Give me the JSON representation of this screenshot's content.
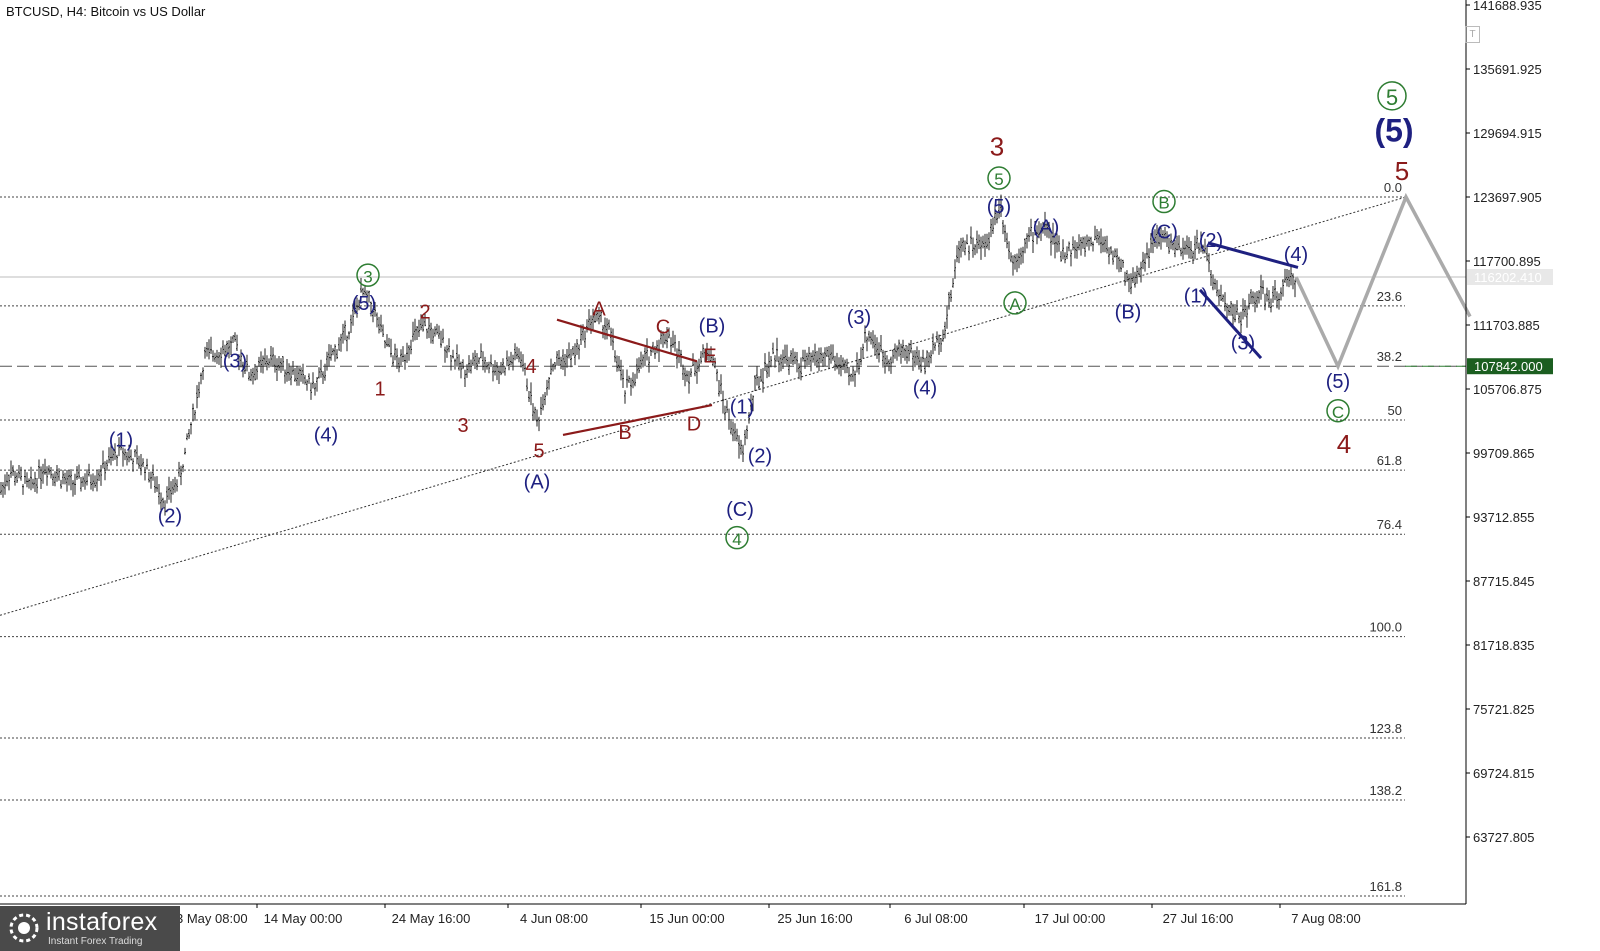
{
  "header": {
    "title": "BTCUSD, H4:  Bitcoin vs US Dollar"
  },
  "logo": {
    "name": "instaforex",
    "tagline": "Instant Forex Trading"
  },
  "toolbar": {
    "t_label": "T"
  },
  "colors": {
    "navy": "#1e2080",
    "maroon": "#8b1a1a",
    "green": "#2e7d32",
    "grey": "#aaaaaa",
    "price_tag": "#1b5e20"
  },
  "chart_data": {
    "type": "line",
    "symbol": "BTCUSD",
    "timeframe": "H4",
    "y_ticks": [
      "141688.935",
      "135691.925",
      "129694.915",
      "123697.905",
      "117700.895",
      "111703.885",
      "105706.875",
      "99709.865",
      "93712.855",
      "87715.845",
      "81718.835",
      "75721.825",
      "69724.815",
      "63727.805"
    ],
    "ylim": [
      58000,
      142500
    ],
    "x_ticks": [
      "14 May 00:00",
      "24 May 16:00",
      "4 Jun 08:00",
      "15 Jun 00:00",
      "25 Jun 16:00",
      "6 Jul 08:00",
      "17 Jul 00:00",
      "27 Jul 16:00",
      "7 Aug 08:00"
    ],
    "x_tick_partial": "3 May 08:00",
    "current_price": "116202.410",
    "level_price": "107842.000",
    "fibonacci": [
      {
        "label": "0.0",
        "price": 123700
      },
      {
        "label": "23.6",
        "price": 113500
      },
      {
        "label": "38.2",
        "price": 107842
      },
      {
        "label": "50",
        "price": 102800
      },
      {
        "label": "61.8",
        "price": 98100
      },
      {
        "label": "76.4",
        "price": 92100
      },
      {
        "label": "100.0",
        "price": 82500
      },
      {
        "label": "123.8",
        "price": 73000
      },
      {
        "label": "138.2",
        "price": 67200
      },
      {
        "label": "161.8",
        "price": 58200
      }
    ],
    "price_path": [
      {
        "t": 0,
        "p": 96000
      },
      {
        "t": 10,
        "p": 98000
      },
      {
        "t": 30,
        "p": 96500
      },
      {
        "t": 45,
        "p": 98500
      },
      {
        "t": 70,
        "p": 96800
      },
      {
        "t": 95,
        "p": 97500
      },
      {
        "t": 120,
        "p": 100000
      },
      {
        "t": 145,
        "p": 98500
      },
      {
        "t": 165,
        "p": 95200
      },
      {
        "t": 180,
        "p": 97500
      },
      {
        "t": 195,
        "p": 104000
      },
      {
        "t": 205,
        "p": 108800
      },
      {
        "t": 235,
        "p": 109800
      },
      {
        "t": 250,
        "p": 107000
      },
      {
        "t": 270,
        "p": 108500
      },
      {
        "t": 290,
        "p": 107500
      },
      {
        "t": 315,
        "p": 105800
      },
      {
        "t": 330,
        "p": 108500
      },
      {
        "t": 350,
        "p": 111500
      },
      {
        "t": 362,
        "p": 114800
      },
      {
        "t": 372,
        "p": 113500
      },
      {
        "t": 385,
        "p": 110000
      },
      {
        "t": 400,
        "p": 108000
      },
      {
        "t": 412,
        "p": 110500
      },
      {
        "t": 425,
        "p": 111500
      },
      {
        "t": 445,
        "p": 110000
      },
      {
        "t": 462,
        "p": 107500
      },
      {
        "t": 480,
        "p": 108500
      },
      {
        "t": 500,
        "p": 107500
      },
      {
        "t": 520,
        "p": 109000
      },
      {
        "t": 537,
        "p": 102500
      },
      {
        "t": 552,
        "p": 108000
      },
      {
        "t": 575,
        "p": 109000
      },
      {
        "t": 592,
        "p": 112500
      },
      {
        "t": 608,
        "p": 111500
      },
      {
        "t": 625,
        "p": 105500
      },
      {
        "t": 645,
        "p": 108500
      },
      {
        "t": 668,
        "p": 111000
      },
      {
        "t": 688,
        "p": 107000
      },
      {
        "t": 710,
        "p": 109500
      },
      {
        "t": 725,
        "p": 104000
      },
      {
        "t": 742,
        "p": 99500
      },
      {
        "t": 755,
        "p": 106000
      },
      {
        "t": 775,
        "p": 109000
      },
      {
        "t": 800,
        "p": 108000
      },
      {
        "t": 830,
        "p": 109000
      },
      {
        "t": 852,
        "p": 106500
      },
      {
        "t": 868,
        "p": 111000
      },
      {
        "t": 885,
        "p": 108500
      },
      {
        "t": 905,
        "p": 109500
      },
      {
        "t": 925,
        "p": 108000
      },
      {
        "t": 945,
        "p": 111500
      },
      {
        "t": 960,
        "p": 119500
      },
      {
        "t": 985,
        "p": 119000
      },
      {
        "t": 1000,
        "p": 123200
      },
      {
        "t": 1012,
        "p": 117500
      },
      {
        "t": 1030,
        "p": 120000
      },
      {
        "t": 1045,
        "p": 121000
      },
      {
        "t": 1060,
        "p": 118500
      },
      {
        "t": 1080,
        "p": 119000
      },
      {
        "t": 1100,
        "p": 120000
      },
      {
        "t": 1115,
        "p": 118000
      },
      {
        "t": 1132,
        "p": 115500
      },
      {
        "t": 1150,
        "p": 119000
      },
      {
        "t": 1163,
        "p": 120000
      },
      {
        "t": 1180,
        "p": 118500
      },
      {
        "t": 1205,
        "p": 119200
      },
      {
        "t": 1215,
        "p": 115000
      },
      {
        "t": 1240,
        "p": 112200
      },
      {
        "t": 1258,
        "p": 114800
      },
      {
        "t": 1272,
        "p": 113800
      },
      {
        "t": 1285,
        "p": 115500
      },
      {
        "t": 1296,
        "p": 116202
      }
    ],
    "forecast_path": [
      {
        "t": 1296,
        "p": 116202
      },
      {
        "t": 1338,
        "p": 107842
      },
      {
        "t": 1406,
        "p": 123700
      },
      {
        "t": 1470,
        "p": 112500
      }
    ],
    "channel_line": {
      "from": {
        "t": 0,
        "p": 84500
      },
      "to": {
        "t": 1406,
        "p": 123700
      }
    },
    "trendlines": [
      {
        "color": "maroon",
        "from": {
          "t": 557,
          "p": 112200
        },
        "to": {
          "t": 697,
          "p": 108300
        }
      },
      {
        "color": "maroon",
        "from": {
          "t": 563,
          "p": 101400
        },
        "to": {
          "t": 712,
          "p": 104200
        }
      },
      {
        "color": "navy",
        "from": {
          "t": 1208,
          "p": 119400
        },
        "to": {
          "t": 1298,
          "p": 117100
        }
      },
      {
        "color": "navy",
        "from": {
          "t": 1200,
          "p": 115000
        },
        "to": {
          "t": 1261,
          "p": 108600
        }
      }
    ],
    "wave_labels": [
      {
        "text": "(1)",
        "color": "navy",
        "t": 121,
        "p": 100300
      },
      {
        "text": "(2)",
        "color": "navy",
        "t": 170,
        "p": 93200
      },
      {
        "text": "(3)",
        "color": "navy",
        "t": 235,
        "p": 107700
      },
      {
        "text": "(4)",
        "color": "navy",
        "t": 326,
        "p": 100800
      },
      {
        "text": "(5)",
        "color": "navy",
        "t": 364,
        "p": 113100
      },
      {
        "text": "3",
        "color": "green",
        "circled": true,
        "t": 368,
        "p": 115700
      },
      {
        "text": "1",
        "color": "maroon",
        "t": 380,
        "p": 105100
      },
      {
        "text": "2",
        "color": "maroon",
        "t": 425,
        "p": 112300
      },
      {
        "text": "3",
        "color": "maroon",
        "t": 463,
        "p": 101700
      },
      {
        "text": "4",
        "color": "maroon",
        "t": 531,
        "p": 107200
      },
      {
        "text": "5",
        "color": "maroon",
        "t": 539,
        "p": 99300
      },
      {
        "text": "(A)",
        "color": "navy",
        "t": 537,
        "p": 96400
      },
      {
        "text": "A",
        "color": "maroon",
        "t": 599,
        "p": 112600
      },
      {
        "text": "B",
        "color": "maroon",
        "t": 625,
        "p": 101000
      },
      {
        "text": "C",
        "color": "maroon",
        "t": 663,
        "p": 110900
      },
      {
        "text": "D",
        "color": "maroon",
        "t": 694,
        "p": 101800
      },
      {
        "text": "E",
        "color": "maroon",
        "t": 710,
        "p": 108200
      },
      {
        "text": "(B)",
        "color": "navy",
        "t": 712,
        "p": 111000
      },
      {
        "text": "(1)",
        "color": "navy",
        "t": 742,
        "p": 103400
      },
      {
        "text": "(2)",
        "color": "navy",
        "t": 760,
        "p": 98800
      },
      {
        "text": "(C)",
        "color": "navy",
        "t": 740,
        "p": 93800
      },
      {
        "text": "4",
        "color": "green",
        "circled": true,
        "t": 737,
        "p": 91100
      },
      {
        "text": "(3)",
        "color": "navy",
        "t": 859,
        "p": 111800
      },
      {
        "text": "(4)",
        "color": "navy",
        "t": 925,
        "p": 105200
      },
      {
        "text": "3",
        "color": "maroon",
        "large": true,
        "t": 997,
        "p": 127600
      },
      {
        "text": "5",
        "color": "green",
        "circled": true,
        "t": 999,
        "p": 124800
      },
      {
        "text": "(5)",
        "color": "navy",
        "t": 999,
        "p": 122200
      },
      {
        "text": "(A)",
        "color": "navy",
        "t": 1046,
        "p": 120300
      },
      {
        "text": "A",
        "color": "green",
        "circled": true,
        "t": 1015,
        "p": 113100
      },
      {
        "text": "(B)",
        "color": "navy",
        "t": 1128,
        "p": 112300
      },
      {
        "text": "B",
        "color": "green",
        "circled": true,
        "t": 1164,
        "p": 122600
      },
      {
        "text": "(C)",
        "color": "navy",
        "t": 1164,
        "p": 119800
      },
      {
        "text": "(2)",
        "color": "navy",
        "t": 1211,
        "p": 119000
      },
      {
        "text": "(1)",
        "color": "navy",
        "t": 1196,
        "p": 113800
      },
      {
        "text": "(3)",
        "color": "navy",
        "t": 1243,
        "p": 109400
      },
      {
        "text": "(4)",
        "color": "navy",
        "t": 1296,
        "p": 117700
      },
      {
        "text": "(5)",
        "color": "navy",
        "t": 1338,
        "p": 105800
      },
      {
        "text": "C",
        "color": "green",
        "circled": true,
        "t": 1338,
        "p": 103000
      },
      {
        "text": "4",
        "color": "maroon",
        "large": true,
        "t": 1344,
        "p": 99700
      },
      {
        "text": "5",
        "color": "green",
        "circled": true,
        "large": true,
        "t": 1392,
        "p": 132300
      },
      {
        "text": "(5)",
        "color": "navy",
        "large": true,
        "bold": true,
        "t": 1394,
        "p": 128900
      },
      {
        "text": "5",
        "color": "maroon",
        "large": true,
        "t": 1402,
        "p": 125300
      }
    ]
  }
}
